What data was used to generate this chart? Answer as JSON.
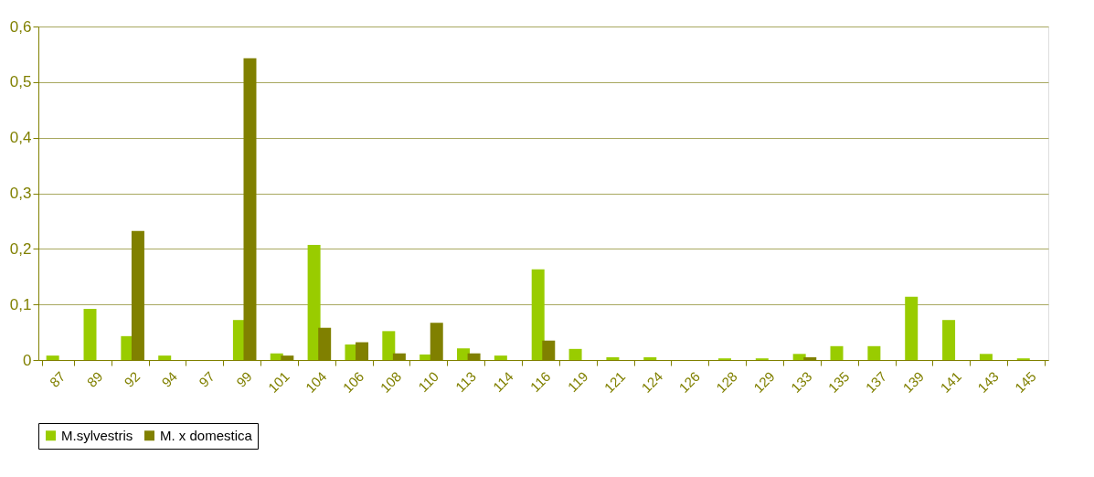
{
  "chart_data": {
    "type": "bar",
    "categories": [
      "87",
      "89",
      "92",
      "94",
      "97",
      "99",
      "101",
      "104",
      "106",
      "108",
      "110",
      "113",
      "114",
      "116",
      "119",
      "121",
      "124",
      "126",
      "128",
      "129",
      "133",
      "135",
      "137",
      "139",
      "141",
      "143",
      "145"
    ],
    "series": [
      {
        "name": "M.sylvestris",
        "color": "#99cc00",
        "values": [
          0.008,
          0.092,
          0.043,
          0.008,
          0,
          0.072,
          0.012,
          0.207,
          0.028,
          0.052,
          0.01,
          0.021,
          0.008,
          0.163,
          0.02,
          0.005,
          0.005,
          0,
          0.003,
          0.003,
          0.011,
          0.025,
          0.025,
          0.114,
          0.072,
          0.011,
          0.003
        ]
      },
      {
        "name": "M. x domestica",
        "color": "#808000",
        "values": [
          0,
          0,
          0.232,
          0,
          0,
          0.543,
          0.008,
          0.058,
          0.032,
          0.012,
          0.067,
          0.012,
          0,
          0.035,
          0,
          0,
          0,
          0,
          0,
          0,
          0.005,
          0,
          0,
          0,
          0,
          0,
          0
        ]
      }
    ],
    "ylim": [
      0,
      0.6
    ],
    "yticks": [
      {
        "value": 0,
        "label": "0"
      },
      {
        "value": 0.1,
        "label": "0,1"
      },
      {
        "value": 0.2,
        "label": "0,2"
      },
      {
        "value": 0.3,
        "label": "0,3"
      },
      {
        "value": 0.4,
        "label": "0,4"
      },
      {
        "value": 0.5,
        "label": "0,5"
      },
      {
        "value": 0.6,
        "label": "0,6"
      }
    ],
    "grid": "y",
    "legend": "bottom"
  }
}
